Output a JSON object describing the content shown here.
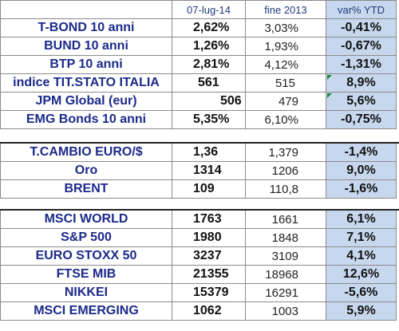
{
  "header": {
    "col_date": "07-lug-14",
    "col_prev": "fine 2013",
    "col_ytd": "var% YTD"
  },
  "sections": [
    {
      "rows": [
        {
          "name": "T-BOND 10 anni",
          "v1": "2,62%",
          "v2": "3,03%",
          "ytd": "-0,41%"
        },
        {
          "name": "BUND 10 anni",
          "v1": "1,26%",
          "v2": "1,93%",
          "ytd": "-0,67%"
        },
        {
          "name": "BTP 10 anni",
          "v1": "2,81%",
          "v2": "4,12%",
          "ytd": "-1,31%"
        },
        {
          "name": "indice TIT.STATO ITALIA",
          "v1": "561",
          "v2": "515",
          "ytd": "8,9%"
        },
        {
          "name": "JPM Global (eur)",
          "v1": "506",
          "v2": "479",
          "ytd": "5,6%"
        },
        {
          "name": "EMG Bonds 10 anni",
          "v1": "5,35%",
          "v2": "6,10%",
          "ytd": "-0,75%"
        }
      ]
    },
    {
      "rows": [
        {
          "name": "T.CAMBIO EURO/$",
          "v1": "1,36",
          "v2": "1,379",
          "ytd": "-1,4%"
        },
        {
          "name": "Oro",
          "v1": "1314",
          "v2": "1206",
          "ytd": "9,0%"
        },
        {
          "name": "BRENT",
          "v1": "109",
          "v2": "110,8",
          "ytd": "-1,6%"
        }
      ]
    },
    {
      "rows": [
        {
          "name": "MSCI WORLD",
          "v1": "1763",
          "v2": "1661",
          "ytd": "6,1%"
        },
        {
          "name": "S&P 500",
          "v1": "1980",
          "v2": "1848",
          "ytd": "7,1%"
        },
        {
          "name": "EURO STOXX 50",
          "v1": "3237",
          "v2": "3109",
          "ytd": "4,1%"
        },
        {
          "name": "FTSE MIB",
          "v1": "21355",
          "v2": "18968",
          "ytd": "12,6%"
        },
        {
          "name": "NIKKEI",
          "v1": "15379",
          "v2": "16291",
          "ytd": "-5,6%"
        },
        {
          "name": "MSCI EMERGING",
          "v1": "1062",
          "v2": "1003",
          "ytd": "5,9%"
        }
      ]
    }
  ],
  "colors": {
    "ytd_bg": "#c7d8ee",
    "name_text": "#1b2a8a",
    "border": "#8a8a8a",
    "flag": "#1e8a3c"
  }
}
